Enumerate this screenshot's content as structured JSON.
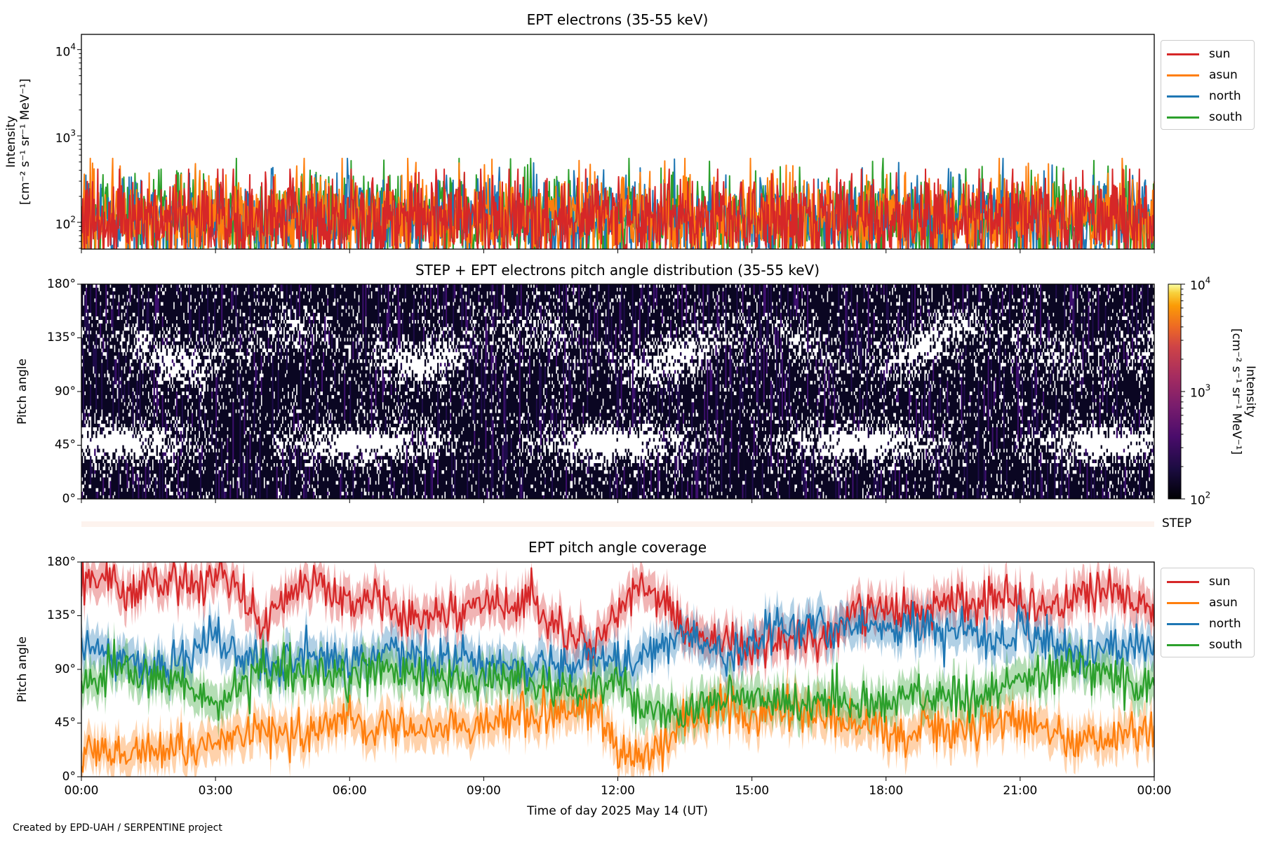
{
  "chart_data": [
    {
      "type": "line",
      "title": "EPT electrons (35-55 keV)",
      "ylabel": "Intensity",
      "ylabel_units": "[cm⁻² s⁻¹ sr⁻¹ MeV⁻¹]",
      "yscale": "log",
      "ylim": [
        49,
        15000
      ],
      "yticks": [
        {
          "base": "10",
          "exp": "2",
          "value": 100
        },
        {
          "base": "10",
          "exp": "3",
          "value": 1000
        },
        {
          "base": "10",
          "exp": "4",
          "value": 10000
        }
      ],
      "typical_level": 110,
      "peak_level": 550,
      "legend_position": "top-right",
      "series": [
        {
          "name": "sun",
          "color": "#d62728"
        },
        {
          "name": "asun",
          "color": "#ff7f0e"
        },
        {
          "name": "north",
          "color": "#1f77b4"
        },
        {
          "name": "south",
          "color": "#2ca02c"
        }
      ]
    },
    {
      "type": "heatmap",
      "title": "STEP + EPT electrons pitch angle distribution (35-55 keV)",
      "ylabel": "Pitch angle",
      "ylim": [
        0,
        180
      ],
      "yticks": [
        "0°",
        "45°",
        "90°",
        "135°",
        "180°"
      ],
      "colorbar": {
        "label": "Intensity",
        "units": "[cm⁻² s⁻¹ sr⁻¹ MeV⁻¹]",
        "scale": "log",
        "range": [
          100,
          10000
        ],
        "ticks": [
          {
            "base": "10",
            "exp": "2"
          },
          {
            "base": "10",
            "exp": "3"
          },
          {
            "base": "10",
            "exp": "4"
          }
        ],
        "colormap": "inferno"
      },
      "step_label": "STEP"
    },
    {
      "type": "line",
      "title": "EPT pitch angle coverage",
      "ylabel": "Pitch angle",
      "ylim": [
        0,
        180
      ],
      "yticks": [
        "0°",
        "45°",
        "90°",
        "135°",
        "180°"
      ],
      "x_hours": [
        0,
        0.5,
        1,
        1.5,
        2,
        2.5,
        3,
        3.5,
        4,
        4.5,
        5,
        5.5,
        6,
        6.5,
        7,
        7.5,
        8,
        8.5,
        9,
        9.5,
        10,
        10.5,
        11,
        11.5,
        12,
        12.5,
        13,
        13.5,
        14,
        14.5,
        15,
        15.5,
        16,
        16.5,
        17,
        17.5,
        18,
        18.5,
        19,
        19.5,
        20,
        20.5,
        21,
        21.5,
        22,
        22.5,
        23,
        23.5,
        24
      ],
      "band_halfwidth_deg": 15,
      "legend_position": "top-right",
      "series": [
        {
          "name": "sun",
          "color": "#d62728",
          "values": [
            160,
            165,
            150,
            170,
            165,
            160,
            170,
            160,
            120,
            150,
            165,
            160,
            145,
            155,
            140,
            130,
            140,
            135,
            150,
            145,
            150,
            130,
            115,
            110,
            140,
            160,
            150,
            120,
            115,
            110,
            105,
            115,
            120,
            110,
            130,
            140,
            135,
            140,
            145,
            150,
            140,
            150,
            145,
            140,
            150,
            155,
            160,
            150,
            140
          ]
        },
        {
          "name": "asun",
          "color": "#ff7f0e",
          "values": [
            25,
            20,
            15,
            20,
            25,
            20,
            30,
            35,
            40,
            35,
            30,
            40,
            45,
            40,
            50,
            40,
            40,
            45,
            35,
            50,
            55,
            50,
            55,
            60,
            30,
            20,
            25,
            45,
            55,
            60,
            50,
            55,
            60,
            50,
            40,
            45,
            40,
            35,
            45,
            40,
            40,
            50,
            45,
            40,
            30,
            25,
            30,
            35,
            40
          ]
        },
        {
          "name": "north",
          "color": "#1f77b4",
          "values": [
            100,
            105,
            95,
            90,
            95,
            100,
            120,
            100,
            95,
            100,
            105,
            100,
            95,
            100,
            110,
            100,
            95,
            100,
            95,
            100,
            90,
            95,
            90,
            100,
            95,
            95,
            110,
            120,
            110,
            100,
            115,
            125,
            120,
            130,
            125,
            130,
            120,
            125,
            130,
            125,
            120,
            110,
            125,
            115,
            110,
            100,
            105,
            110,
            115
          ]
        },
        {
          "name": "south",
          "color": "#2ca02c",
          "values": [
            80,
            85,
            90,
            85,
            80,
            75,
            55,
            80,
            85,
            90,
            80,
            85,
            80,
            90,
            85,
            80,
            85,
            85,
            80,
            85,
            80,
            75,
            70,
            80,
            85,
            60,
            55,
            50,
            65,
            70,
            60,
            65,
            55,
            70,
            65,
            60,
            60,
            70,
            65,
            70,
            60,
            75,
            80,
            85,
            95,
            90,
            85,
            80,
            70
          ]
        }
      ]
    }
  ],
  "x_axis": {
    "ticks": [
      "00:00",
      "03:00",
      "06:00",
      "09:00",
      "12:00",
      "15:00",
      "18:00",
      "21:00",
      "00:00"
    ],
    "label": "Time of day 2025 May 14 (UT)"
  },
  "footer": {
    "credit": "Created by EPD-UAH / SERPENTINE project"
  }
}
